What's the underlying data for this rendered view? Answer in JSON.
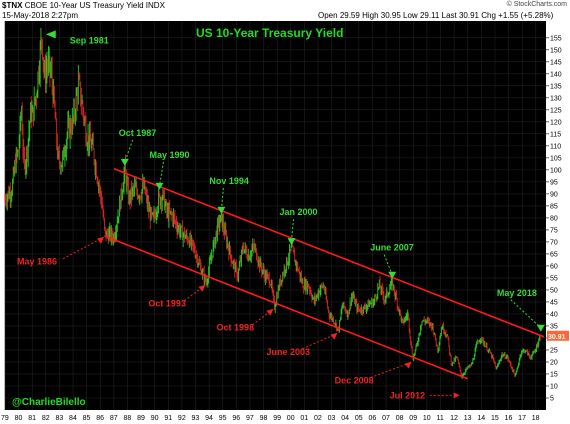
{
  "header": {
    "symbol": "$TNX",
    "description": "CBOE 10-Year US Treasury Yield",
    "exchange": "INDX",
    "date": "15-May-2018 2:27pm",
    "open_label": "Open",
    "open": "29.59",
    "high_label": "High",
    "high": "30.95",
    "low_label": "Low",
    "low": "29.11",
    "last_label": "Last",
    "last": "30.91",
    "chg_label": "Chg",
    "chg": "+1.55 (+5.28%)",
    "logo": "© StockCharts.com"
  },
  "watermark": "@CharlieBilello",
  "colors": {
    "background": "#000000",
    "title": "#22dd22",
    "peak_label": "#33dd33",
    "trough_label": "#ee2222",
    "channel": "#ff1a1a",
    "up_bar": "#22cc22",
    "down_bar": "#dd2222",
    "last_box": "#ff6633"
  },
  "chart_data": {
    "type": "line",
    "title": "US 10-Year Treasury Yield",
    "xlabel": "",
    "ylabel": "",
    "ylim": [
      0,
      162
    ],
    "xlim": [
      1979.0,
      2018.75
    ],
    "grid": true,
    "y_ticks": [
      5,
      10,
      15,
      20,
      25,
      30,
      35,
      40,
      45,
      50,
      55,
      60,
      65,
      70,
      75,
      80,
      85,
      90,
      95,
      100,
      105,
      110,
      115,
      120,
      125,
      130,
      135,
      140,
      145,
      150,
      155
    ],
    "x_ticks": [
      {
        "year": 1979,
        "label": "79"
      },
      {
        "year": 1980,
        "label": "80"
      },
      {
        "year": 1981,
        "label": "81"
      },
      {
        "year": 1982,
        "label": "82"
      },
      {
        "year": 1983,
        "label": "83"
      },
      {
        "year": 1984,
        "label": "84"
      },
      {
        "year": 1985,
        "label": "85"
      },
      {
        "year": 1986,
        "label": "86"
      },
      {
        "year": 1987,
        "label": "87"
      },
      {
        "year": 1988,
        "label": "88"
      },
      {
        "year": 1989,
        "label": "89"
      },
      {
        "year": 1990,
        "label": "90"
      },
      {
        "year": 1991,
        "label": "91"
      },
      {
        "year": 1992,
        "label": "92"
      },
      {
        "year": 1993,
        "label": "93"
      },
      {
        "year": 1994,
        "label": "94"
      },
      {
        "year": 1995,
        "label": "95"
      },
      {
        "year": 1996,
        "label": "96"
      },
      {
        "year": 1997,
        "label": "97"
      },
      {
        "year": 1998,
        "label": "98"
      },
      {
        "year": 1999,
        "label": "99"
      },
      {
        "year": 2000,
        "label": "00"
      },
      {
        "year": 2001,
        "label": "01"
      },
      {
        "year": 2002,
        "label": "02"
      },
      {
        "year": 2003,
        "label": "03"
      },
      {
        "year": 2004,
        "label": "04"
      },
      {
        "year": 2005,
        "label": "05"
      },
      {
        "year": 2006,
        "label": "06"
      },
      {
        "year": 2007,
        "label": "07"
      },
      {
        "year": 2008,
        "label": "08"
      },
      {
        "year": 2009,
        "label": "09"
      },
      {
        "year": 2010,
        "label": "10"
      },
      {
        "year": 2011,
        "label": "11"
      },
      {
        "year": 2012,
        "label": "12"
      },
      {
        "year": 2013,
        "label": "13"
      },
      {
        "year": 2014,
        "label": "14"
      },
      {
        "year": 2015,
        "label": "15"
      },
      {
        "year": 2016,
        "label": "16"
      },
      {
        "year": 2017,
        "label": "17"
      },
      {
        "year": 2018,
        "label": "18"
      }
    ],
    "series": [
      {
        "values": [
          [
            1979.0,
            88
          ],
          [
            1979.5,
            92
          ],
          [
            1979.8,
            104
          ],
          [
            1980.0,
            108
          ],
          [
            1980.2,
            126
          ],
          [
            1980.4,
            100
          ],
          [
            1980.6,
            107
          ],
          [
            1980.9,
            125
          ],
          [
            1981.0,
            122
          ],
          [
            1981.3,
            132
          ],
          [
            1981.7,
            156
          ],
          [
            1981.9,
            138
          ],
          [
            1982.1,
            144
          ],
          [
            1982.4,
            140
          ],
          [
            1982.6,
            128
          ],
          [
            1982.9,
            104
          ],
          [
            1983.2,
            103
          ],
          [
            1983.6,
            116
          ],
          [
            1984.0,
            120
          ],
          [
            1984.4,
            136
          ],
          [
            1984.7,
            126
          ],
          [
            1985.0,
            114
          ],
          [
            1985.4,
            110
          ],
          [
            1985.8,
            97
          ],
          [
            1986.1,
            87
          ],
          [
            1986.35,
            73
          ],
          [
            1986.7,
            73
          ],
          [
            1987.0,
            72
          ],
          [
            1987.4,
            84
          ],
          [
            1987.8,
            100
          ],
          [
            1988.1,
            88
          ],
          [
            1988.5,
            92
          ],
          [
            1988.9,
            90
          ],
          [
            1989.2,
            93
          ],
          [
            1989.6,
            82
          ],
          [
            1989.9,
            79
          ],
          [
            1990.3,
            88
          ],
          [
            1990.6,
            89
          ],
          [
            1990.9,
            82
          ],
          [
            1991.3,
            81
          ],
          [
            1991.7,
            76
          ],
          [
            1992.1,
            73
          ],
          [
            1992.5,
            71
          ],
          [
            1992.9,
            67
          ],
          [
            1993.3,
            60
          ],
          [
            1993.8,
            53
          ],
          [
            1994.2,
            65
          ],
          [
            1994.6,
            76
          ],
          [
            1994.9,
            80
          ],
          [
            1995.3,
            70
          ],
          [
            1995.7,
            62
          ],
          [
            1996.1,
            56
          ],
          [
            1996.5,
            68
          ],
          [
            1996.9,
            64
          ],
          [
            1997.3,
            68
          ],
          [
            1997.7,
            61
          ],
          [
            1998.1,
            56
          ],
          [
            1998.5,
            54
          ],
          [
            1998.8,
            43
          ],
          [
            1999.2,
            53
          ],
          [
            1999.6,
            60
          ],
          [
            2000.05,
            67
          ],
          [
            2000.5,
            59
          ],
          [
            2000.9,
            52
          ],
          [
            2001.3,
            52
          ],
          [
            2001.7,
            45
          ],
          [
            2002.1,
            50
          ],
          [
            2002.4,
            52
          ],
          [
            2002.8,
            40
          ],
          [
            2003.2,
            37
          ],
          [
            2003.5,
            33
          ],
          [
            2003.8,
            44
          ],
          [
            2004.2,
            40
          ],
          [
            2004.5,
            48
          ],
          [
            2004.9,
            42
          ],
          [
            2005.3,
            42
          ],
          [
            2005.7,
            44
          ],
          [
            2006.1,
            45
          ],
          [
            2006.5,
            52
          ],
          [
            2006.9,
            46
          ],
          [
            2007.45,
            53
          ],
          [
            2007.8,
            45
          ],
          [
            2008.2,
            36
          ],
          [
            2008.6,
            40
          ],
          [
            2008.95,
            21
          ],
          [
            2009.3,
            28
          ],
          [
            2009.6,
            37
          ],
          [
            2010.0,
            37
          ],
          [
            2010.4,
            35
          ],
          [
            2010.8,
            25
          ],
          [
            2011.1,
            35
          ],
          [
            2011.5,
            31
          ],
          [
            2011.8,
            19
          ],
          [
            2012.2,
            22
          ],
          [
            2012.55,
            14
          ],
          [
            2012.9,
            17
          ],
          [
            2013.3,
            19
          ],
          [
            2013.7,
            28
          ],
          [
            2013.95,
            30
          ],
          [
            2014.4,
            26
          ],
          [
            2014.8,
            22
          ],
          [
            2015.1,
            17
          ],
          [
            2015.5,
            23
          ],
          [
            2015.9,
            22
          ],
          [
            2016.2,
            18
          ],
          [
            2016.5,
            14
          ],
          [
            2016.9,
            24
          ],
          [
            2017.2,
            25
          ],
          [
            2017.6,
            22
          ],
          [
            2017.9,
            24
          ],
          [
            2018.15,
            28
          ],
          [
            2018.37,
            30.9
          ]
        ]
      }
    ],
    "channel_lines": [
      {
        "name": "upper",
        "start": [
          1987.0,
          100.5
        ],
        "end": [
          2018.6,
          30.5
        ]
      },
      {
        "name": "lower",
        "start": [
          1986.3,
          72.5
        ],
        "end": [
          2013.0,
          13.0
        ]
      }
    ],
    "last_value": "30.91",
    "annotations": [
      {
        "label": "Sep 1981",
        "type": "peak",
        "year": 1981.7,
        "value": 156
      },
      {
        "label": "Oct 1987",
        "type": "peak",
        "year": 1987.8,
        "value": 100
      },
      {
        "label": "May 1990",
        "type": "peak",
        "year": 1990.35,
        "value": 90
      },
      {
        "label": "Nov 1994",
        "type": "peak",
        "year": 1994.9,
        "value": 80
      },
      {
        "label": "Jan 2000",
        "type": "peak",
        "year": 2000.05,
        "value": 67
      },
      {
        "label": "June 2007",
        "type": "peak",
        "year": 2007.45,
        "value": 53
      },
      {
        "label": "May 2018",
        "type": "peak",
        "year": 2018.37,
        "value": 30.9
      },
      {
        "label": "May 1986",
        "type": "trough",
        "year": 1986.35,
        "value": 73
      },
      {
        "label": "Oct 1993",
        "type": "trough",
        "year": 1993.8,
        "value": 53
      },
      {
        "label": "Oct 1998",
        "type": "trough",
        "year": 1998.8,
        "value": 43
      },
      {
        "label": "June 2003",
        "type": "trough",
        "year": 2003.5,
        "value": 33
      },
      {
        "label": "Dec 2008",
        "type": "trough",
        "year": 2008.95,
        "value": 21
      },
      {
        "label": "Jul 2012",
        "type": "trough",
        "year": 2012.55,
        "value": 14
      }
    ]
  }
}
